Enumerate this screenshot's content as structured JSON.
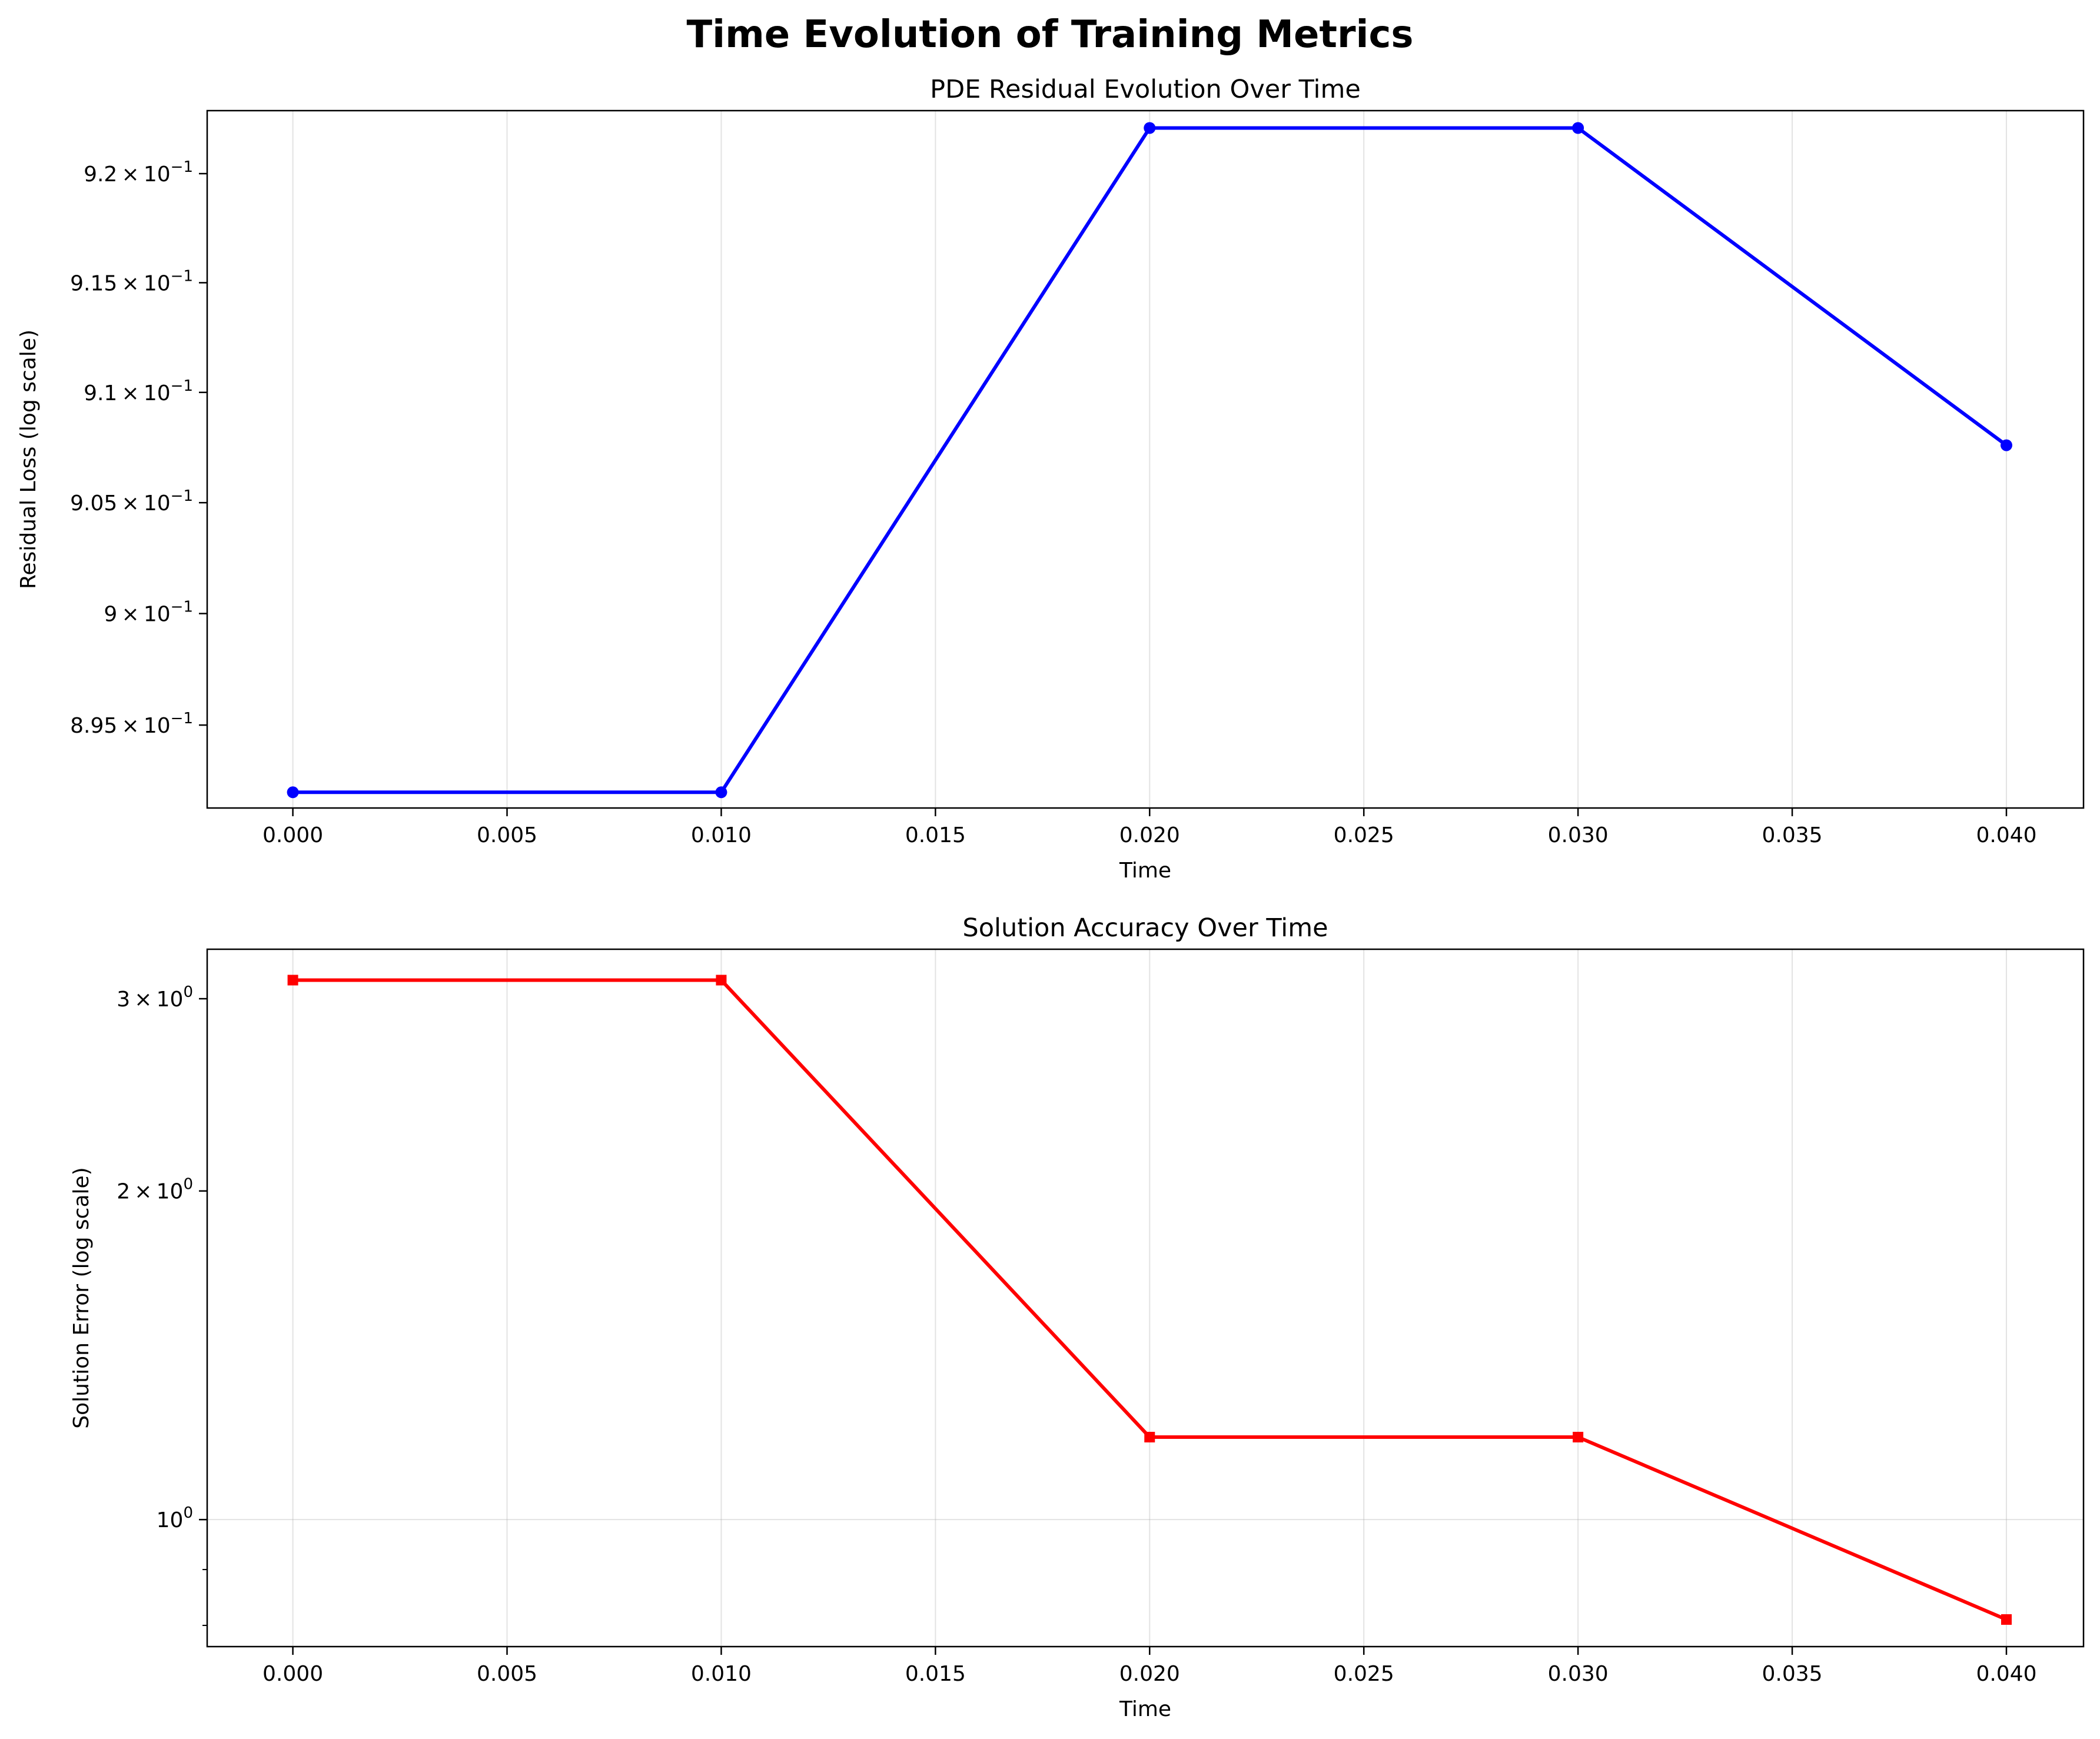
{
  "figure_title": "Time Evolution of Training Metrics",
  "chart_data": [
    {
      "type": "line",
      "title": "PDE Residual Evolution Over Time",
      "xlabel": "Time",
      "ylabel": "Residual Loss (log scale)",
      "yscale": "log",
      "xlim": [
        -0.002,
        0.0418
      ],
      "ylim": [
        0.8913,
        0.9229
      ],
      "grid": "x",
      "x_ticks": [
        0.0,
        0.005,
        0.01,
        0.015,
        0.02,
        0.025,
        0.03,
        0.035,
        0.04
      ],
      "x_tick_labels": [
        "0.000",
        "0.005",
        "0.010",
        "0.015",
        "0.020",
        "0.025",
        "0.030",
        "0.035",
        "0.040"
      ],
      "y_ticks": [
        {
          "value": 0.895,
          "mant": "8.95",
          "exp": "−1"
        },
        {
          "value": 0.9,
          "mant": "9",
          "exp": "−1"
        },
        {
          "value": 0.905,
          "mant": "9.05",
          "exp": "−1"
        },
        {
          "value": 0.91,
          "mant": "9.1",
          "exp": "−1"
        },
        {
          "value": 0.915,
          "mant": "9.15",
          "exp": "−1"
        },
        {
          "value": 0.92,
          "mant": "9.2",
          "exp": "−1"
        }
      ],
      "series": [
        {
          "color": "#0000ff",
          "marker": "circle",
          "x": [
            0.0,
            0.01,
            0.02,
            0.03,
            0.04
          ],
          "y": [
            0.892,
            0.892,
            0.9221,
            0.9221,
            0.9076
          ]
        }
      ]
    },
    {
      "type": "line",
      "title": "Solution Accuracy Over Time",
      "xlabel": "Time",
      "ylabel": "Solution Error (log scale)",
      "yscale": "log",
      "xlim": [
        -0.002,
        0.0418
      ],
      "ylim": [
        0.765,
        3.33
      ],
      "grid": "both",
      "x_ticks": [
        0.0,
        0.005,
        0.01,
        0.015,
        0.02,
        0.025,
        0.03,
        0.035,
        0.04
      ],
      "x_tick_labels": [
        "0.000",
        "0.005",
        "0.010",
        "0.015",
        "0.020",
        "0.025",
        "0.030",
        "0.035",
        "0.040"
      ],
      "y_ticks": [
        {
          "value": 1,
          "mant": "10",
          "exp": "0",
          "power_only": true
        },
        {
          "value": 2,
          "mant": "2",
          "exp": "0"
        },
        {
          "value": 3,
          "mant": "3",
          "exp": "0"
        }
      ],
      "y_minor_ticks": [
        0.8,
        0.9
      ],
      "series": [
        {
          "color": "#ff0000",
          "marker": "square",
          "x": [
            0.0,
            0.01,
            0.02,
            0.03,
            0.04
          ],
          "y": [
            3.12,
            3.12,
            1.19,
            1.19,
            0.81
          ]
        }
      ]
    }
  ]
}
